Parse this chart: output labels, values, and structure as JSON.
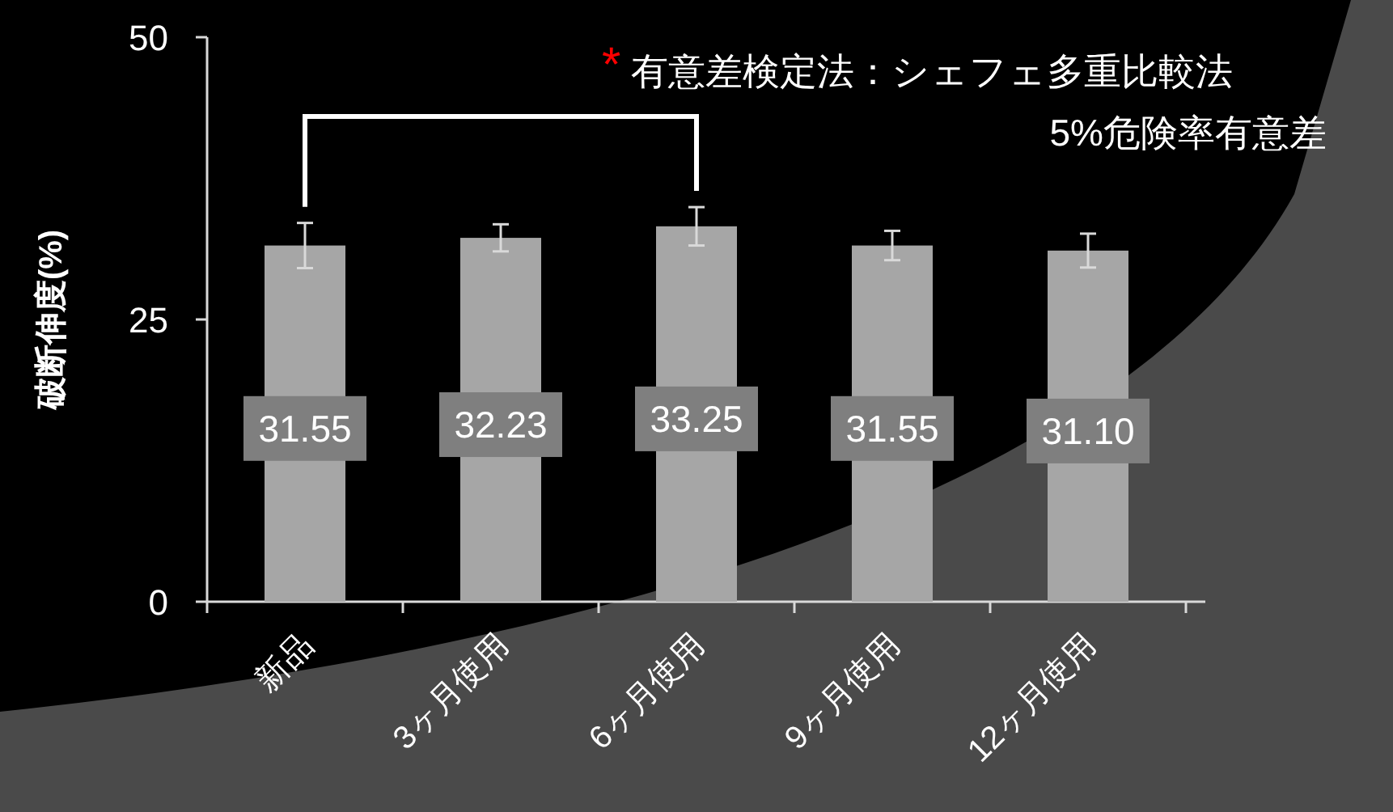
{
  "chart_data": {
    "type": "bar",
    "ylabel": "破断伸度(%)",
    "categories": [
      "新品",
      "3ヶ月使用",
      "6ヶ月使用",
      "9ヶ月使用",
      "12ヶ月使用"
    ],
    "values": [
      31.55,
      32.23,
      33.25,
      31.55,
      31.1
    ],
    "errors": [
      2.0,
      1.2,
      1.7,
      1.3,
      1.5
    ],
    "value_labels": [
      "31.55",
      "32.23",
      "33.25",
      "31.55",
      "31.10"
    ],
    "color": "#a6a6a6",
    "ylim": [
      0,
      50
    ],
    "yticks": [
      0,
      25,
      50
    ],
    "annotations": [
      "*",
      "有意差検定法：シェフェ多重比較法",
      "5%危険率有意差"
    ],
    "grid": false
  }
}
